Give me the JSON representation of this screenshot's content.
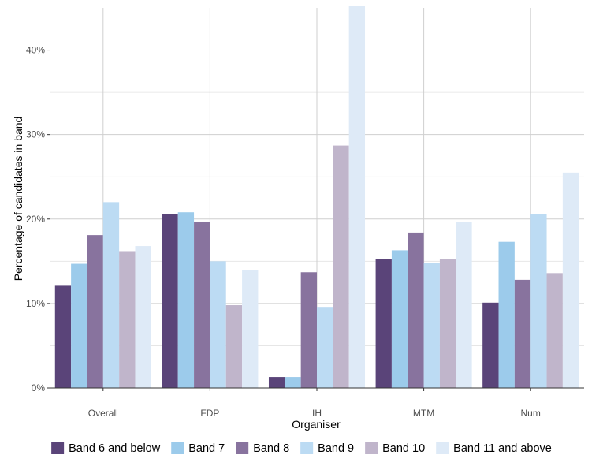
{
  "chart_data": {
    "type": "bar",
    "title": "",
    "xlabel": "Organiser",
    "ylabel": "Percentage of candidates in band",
    "categories": [
      "Overall",
      "FDP",
      "IH",
      "MTM",
      "Num"
    ],
    "ylim": [
      0,
      45
    ],
    "yticks": [
      0,
      10,
      20,
      30,
      40
    ],
    "ytick_labels": [
      "0%",
      "10%",
      "20%",
      "30%",
      "40%"
    ],
    "grid": true,
    "legend_position": "bottom",
    "series": [
      {
        "name": "Band 6 and below",
        "color": "#5a4479",
        "values": [
          12.1,
          20.6,
          1.3,
          15.3,
          10.1
        ]
      },
      {
        "name": "Band 7",
        "color": "#9ccbeb",
        "values": [
          14.7,
          20.8,
          1.3,
          16.3,
          17.3
        ]
      },
      {
        "name": "Band 8",
        "color": "#88739e",
        "values": [
          18.1,
          19.7,
          13.7,
          18.4,
          12.8
        ]
      },
      {
        "name": "Band 9",
        "color": "#bcdbf3",
        "values": [
          22.0,
          15.0,
          9.6,
          14.8,
          20.6
        ]
      },
      {
        "name": "Band 10",
        "color": "#c0b5cb",
        "values": [
          16.2,
          9.8,
          28.7,
          15.3,
          13.6
        ]
      },
      {
        "name": "Band 11 and above",
        "color": "#deeaf7",
        "values": [
          16.8,
          14.0,
          45.2,
          19.7,
          25.5
        ]
      }
    ]
  }
}
